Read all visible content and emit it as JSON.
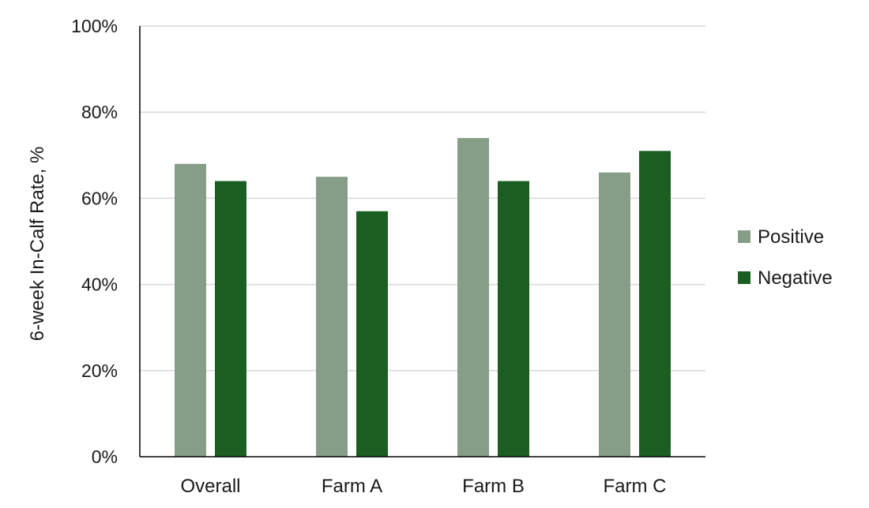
{
  "chart_data": {
    "type": "bar",
    "categories": [
      "Overall",
      "Farm A",
      "Farm B",
      "Farm C"
    ],
    "series": [
      {
        "name": "Positive",
        "values": [
          68,
          65,
          74,
          66
        ],
        "color": "#869e88"
      },
      {
        "name": "Negative",
        "values": [
          64,
          57,
          64,
          71
        ],
        "color": "#1a5e22"
      }
    ],
    "ylabel": "6-week In-Calf Rate, %",
    "xlabel": "",
    "ylim": [
      0,
      100
    ],
    "yticks": [
      0,
      20,
      40,
      60,
      80,
      100
    ],
    "ytick_labels": [
      "0%",
      "20%",
      "40%",
      "60%",
      "80%",
      "100%"
    ],
    "grid": true,
    "legend_position": "right"
  }
}
